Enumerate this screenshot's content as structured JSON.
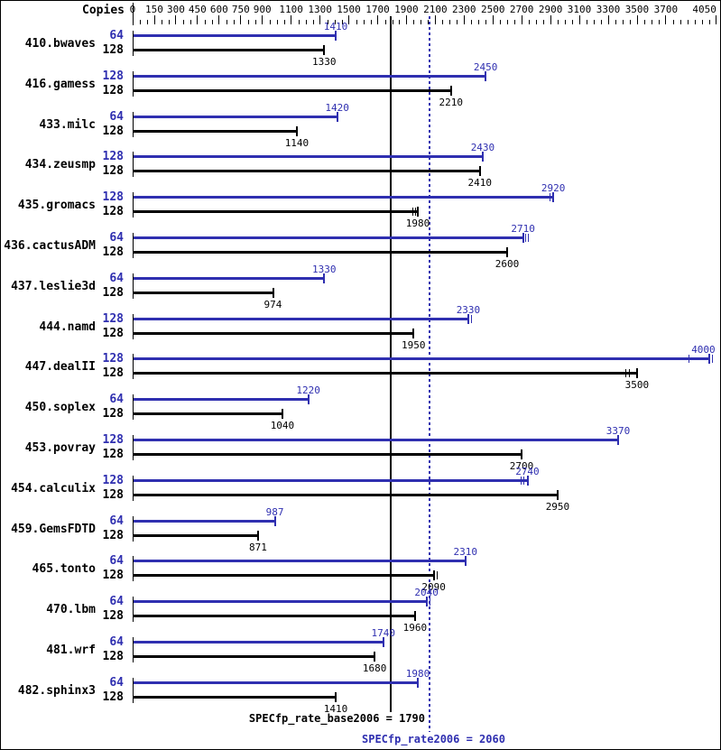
{
  "chart_data": {
    "type": "bar",
    "orientation": "horizontal",
    "copies_header": "Copies",
    "grid": false,
    "colors": {
      "peak": "#2f2fb0",
      "base": "#000000"
    },
    "x_axis": {
      "range": [
        0,
        4050
      ],
      "ticks": [
        0,
        150,
        300,
        450,
        600,
        750,
        900,
        1100,
        1300,
        1500,
        1700,
        1900,
        2100,
        2300,
        2500,
        2700,
        2900,
        3100,
        3300,
        3500,
        3700,
        4050
      ],
      "minor_tick_step": 50
    },
    "benchmarks": [
      {
        "name": "410.bwaves",
        "peak": {
          "copies": "64",
          "value": 1410,
          "marks": []
        },
        "base": {
          "copies": "128",
          "value": 1330,
          "marks": []
        }
      },
      {
        "name": "416.gamess",
        "peak": {
          "copies": "128",
          "value": 2450,
          "marks": []
        },
        "base": {
          "copies": "128",
          "value": 2210,
          "marks": []
        }
      },
      {
        "name": "433.milc",
        "peak": {
          "copies": "64",
          "value": 1420,
          "marks": []
        },
        "base": {
          "copies": "128",
          "value": 1140,
          "marks": []
        }
      },
      {
        "name": "434.zeusmp",
        "peak": {
          "copies": "128",
          "value": 2430,
          "marks": []
        },
        "base": {
          "copies": "128",
          "value": 2410,
          "marks": []
        }
      },
      {
        "name": "435.gromacs",
        "peak": {
          "copies": "128",
          "value": 2920,
          "marks": [
            2895
          ]
        },
        "base": {
          "copies": "128",
          "value": 1980,
          "marks": [
            1940,
            1958
          ]
        }
      },
      {
        "name": "436.cactusADM",
        "peak": {
          "copies": "64",
          "value": 2710,
          "marks": [
            2725,
            2740
          ]
        },
        "base": {
          "copies": "128",
          "value": 2600,
          "marks": []
        }
      },
      {
        "name": "437.leslie3d",
        "peak": {
          "copies": "64",
          "value": 1330,
          "marks": []
        },
        "base": {
          "copies": "128",
          "value": 974,
          "marks": []
        }
      },
      {
        "name": "444.namd",
        "peak": {
          "copies": "128",
          "value": 2330,
          "marks": [
            2350
          ]
        },
        "base": {
          "copies": "128",
          "value": 1950,
          "marks": []
        }
      },
      {
        "name": "447.dealII",
        "peak": {
          "copies": "128",
          "value": 4000,
          "marks": [
            3860,
            4020
          ]
        },
        "base": {
          "copies": "128",
          "value": 3500,
          "marks": [
            3420,
            3445
          ]
        }
      },
      {
        "name": "450.soplex",
        "peak": {
          "copies": "64",
          "value": 1220,
          "marks": []
        },
        "base": {
          "copies": "128",
          "value": 1040,
          "marks": []
        }
      },
      {
        "name": "453.povray",
        "peak": {
          "copies": "128",
          "value": 3370,
          "marks": []
        },
        "base": {
          "copies": "128",
          "value": 2700,
          "marks": []
        }
      },
      {
        "name": "454.calculix",
        "peak": {
          "copies": "128",
          "value": 2740,
          "marks": [
            2690,
            2712
          ]
        },
        "base": {
          "copies": "128",
          "value": 2950,
          "marks": []
        }
      },
      {
        "name": "459.GemsFDTD",
        "peak": {
          "copies": "64",
          "value": 987,
          "marks": []
        },
        "base": {
          "copies": "128",
          "value": 871,
          "marks": []
        }
      },
      {
        "name": "465.tonto",
        "peak": {
          "copies": "64",
          "value": 2310,
          "marks": []
        },
        "base": {
          "copies": "128",
          "value": 2090,
          "marks": [
            2112
          ]
        }
      },
      {
        "name": "470.lbm",
        "peak": {
          "copies": "64",
          "value": 2040,
          "marks": [
            2058
          ]
        },
        "base": {
          "copies": "128",
          "value": 1960,
          "marks": []
        }
      },
      {
        "name": "481.wrf",
        "peak": {
          "copies": "64",
          "value": 1740,
          "marks": []
        },
        "base": {
          "copies": "128",
          "value": 1680,
          "marks": []
        }
      },
      {
        "name": "482.sphinx3",
        "peak": {
          "copies": "64",
          "value": 1980,
          "marks": []
        },
        "base": {
          "copies": "128",
          "value": 1410,
          "marks": []
        }
      }
    ],
    "reference_lines": [
      {
        "name": "base",
        "label": "SPECfp_rate_base2006 = 1790",
        "value": 1790,
        "style": "solid",
        "color": "#000000"
      },
      {
        "name": "peak",
        "label": "SPECfp_rate2006 = 2060",
        "value": 2060,
        "style": "dotted",
        "color": "#2f2fb0"
      }
    ]
  }
}
